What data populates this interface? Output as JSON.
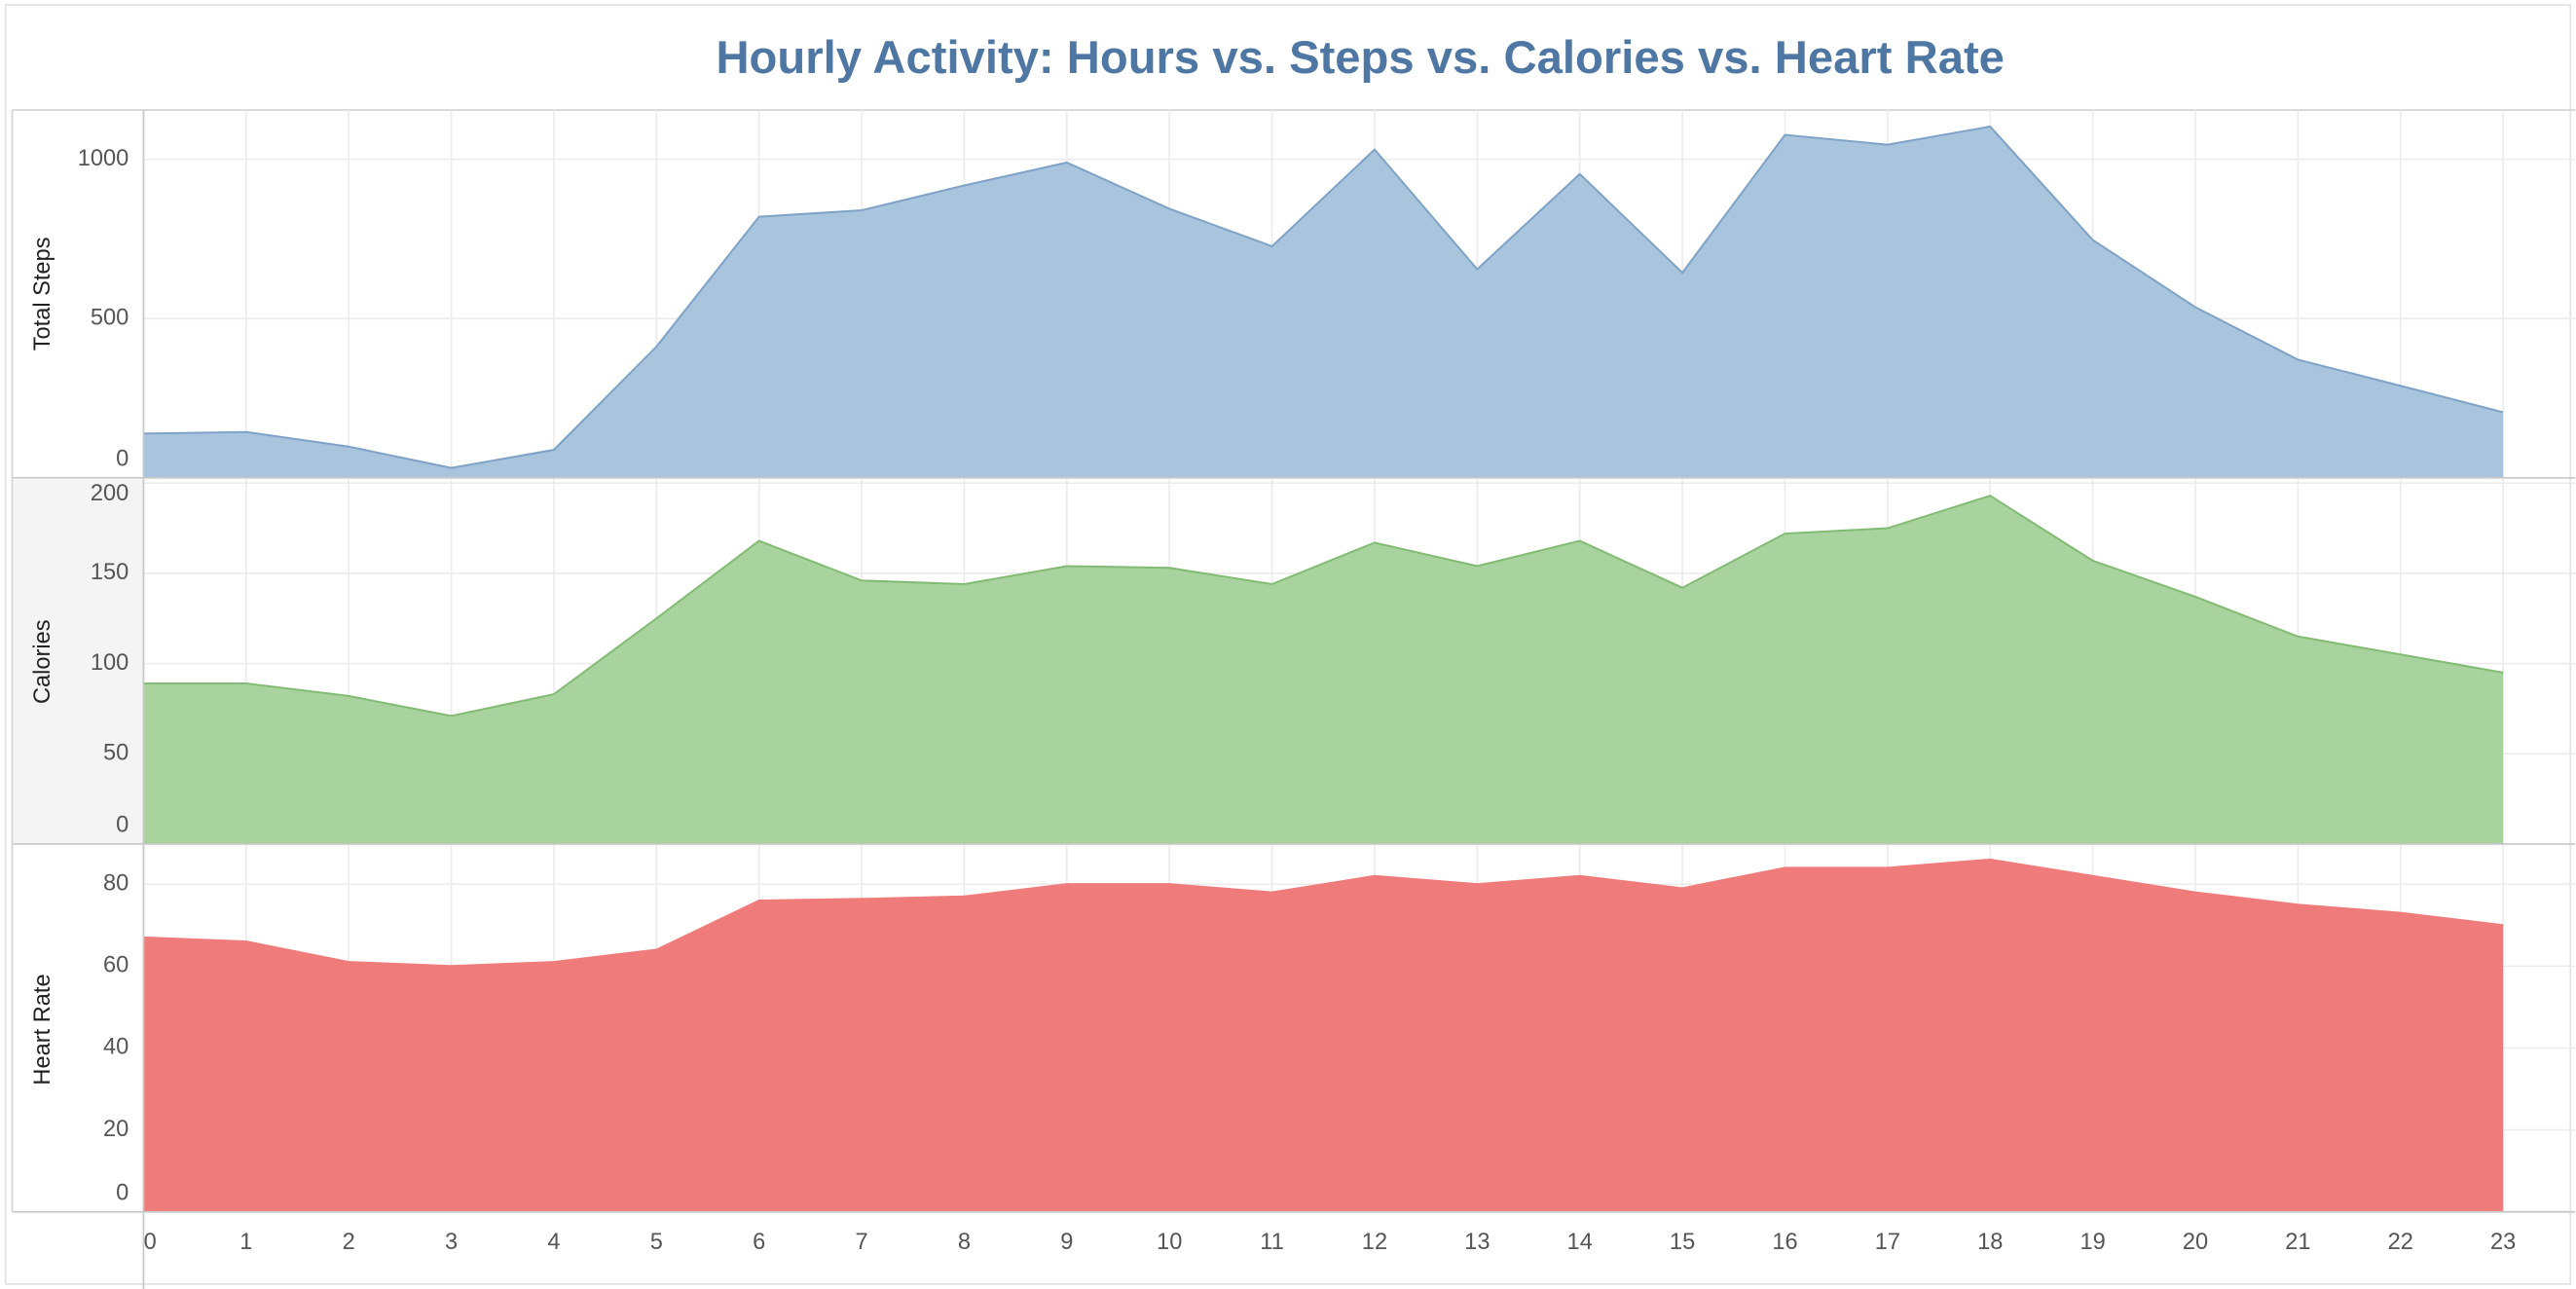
{
  "chart_data": {
    "type": "area",
    "title": "Hourly Activity: Hours vs. Steps vs. Calories vs. Heart Rate",
    "x": [
      0,
      1,
      2,
      3,
      4,
      5,
      6,
      7,
      8,
      9,
      10,
      11,
      12,
      13,
      14,
      15,
      16,
      17,
      18,
      19,
      20,
      21,
      22,
      23
    ],
    "xlim": [
      0,
      23
    ],
    "xticks": [
      0,
      1,
      2,
      3,
      4,
      5,
      6,
      7,
      8,
      9,
      10,
      11,
      12,
      13,
      14,
      15,
      16,
      17,
      18,
      19,
      20,
      21,
      22,
      23
    ],
    "grid": true,
    "series": [
      {
        "name": "Total Steps",
        "color": "#a9c4dd",
        "line_color": "#7fa3c7",
        "values": [
          139,
          144,
          98,
          31,
          88,
          412,
          820,
          840,
          918,
          990,
          845,
          727,
          1031,
          655,
          954,
          644,
          1077,
          1046,
          1103,
          747,
          536,
          371,
          289,
          206
        ],
        "ylim": [
          0,
          1155
        ],
        "yticks": [
          0,
          500,
          1000
        ]
      },
      {
        "name": "Calories",
        "color": "#a9d39e",
        "line_color": "#82bb73",
        "values": [
          89,
          89,
          82,
          71,
          83,
          125,
          168,
          146,
          144,
          154,
          153,
          144,
          167,
          154,
          168,
          142,
          172,
          175,
          193,
          157,
          137,
          115,
          105,
          95
        ],
        "ylim": [
          0,
          202
        ],
        "yticks": [
          0,
          50,
          100,
          150,
          200
        ]
      },
      {
        "name": "Heart Rate",
        "color": "#f07b7b",
        "line_color": "#f07b7b",
        "values": [
          67,
          66,
          61,
          60,
          61,
          64,
          76,
          76.4,
          77,
          80,
          80,
          78,
          82,
          80,
          82,
          79,
          84,
          84,
          86,
          82,
          78,
          75,
          73,
          70
        ],
        "ylim": [
          0,
          89
        ],
        "yticks": [
          0,
          20,
          40,
          60,
          80
        ]
      }
    ]
  }
}
